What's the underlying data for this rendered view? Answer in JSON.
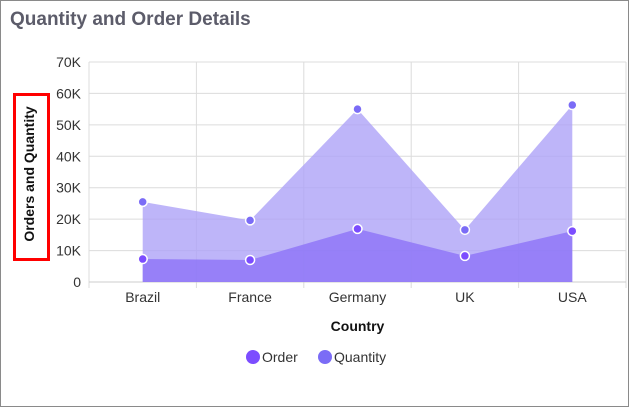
{
  "chart_data": {
    "type": "area",
    "title": "Quantity and Order Details",
    "xlabel": "Country",
    "ylabel": "Orders and Quantity",
    "categories": [
      "Brazil",
      "France",
      "Germany",
      "UK",
      "USA"
    ],
    "ylim": [
      0,
      70000
    ],
    "yticks": [
      0,
      10000,
      20000,
      30000,
      40000,
      50000,
      60000,
      70000
    ],
    "ytick_labels": [
      "0",
      "10K",
      "20K",
      "30K",
      "40K",
      "50K",
      "60K",
      "70K"
    ],
    "grid": true,
    "legend": "bottom",
    "series": [
      {
        "name": "Order",
        "values": [
          7300,
          7000,
          16900,
          8300,
          16200
        ],
        "color": "#7c4dff",
        "fill": "#8a6ff7"
      },
      {
        "name": "Quantity",
        "values": [
          25500,
          19600,
          55000,
          16600,
          56300
        ],
        "color": "#7b6cf6",
        "fill": "#aea2f8"
      }
    ]
  },
  "annotation": {
    "color": "#ff0000"
  }
}
